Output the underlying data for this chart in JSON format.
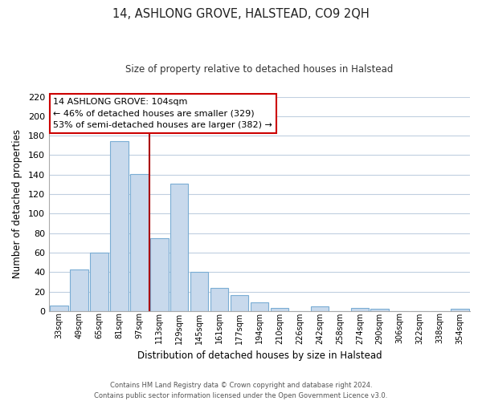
{
  "title": "14, ASHLONG GROVE, HALSTEAD, CO9 2QH",
  "subtitle": "Size of property relative to detached houses in Halstead",
  "xlabel": "Distribution of detached houses by size in Halstead",
  "ylabel": "Number of detached properties",
  "bar_labels": [
    "33sqm",
    "49sqm",
    "65sqm",
    "81sqm",
    "97sqm",
    "113sqm",
    "129sqm",
    "145sqm",
    "161sqm",
    "177sqm",
    "194sqm",
    "210sqm",
    "226sqm",
    "242sqm",
    "258sqm",
    "274sqm",
    "290sqm",
    "306sqm",
    "322sqm",
    "338sqm",
    "354sqm"
  ],
  "bar_values": [
    6,
    43,
    60,
    174,
    141,
    75,
    131,
    40,
    24,
    16,
    9,
    3,
    0,
    5,
    0,
    3,
    2,
    0,
    0,
    0,
    2
  ],
  "bar_color": "#c8d9ec",
  "bar_edge_color": "#7aadd4",
  "vline_x": 4.5,
  "vline_color": "#aa0000",
  "ylim": [
    0,
    220
  ],
  "yticks": [
    0,
    20,
    40,
    60,
    80,
    100,
    120,
    140,
    160,
    180,
    200,
    220
  ],
  "annotation_title": "14 ASHLONG GROVE: 104sqm",
  "annotation_line1": "← 46% of detached houses are smaller (329)",
  "annotation_line2": "53% of semi-detached houses are larger (382) →",
  "annotation_box_color": "#ffffff",
  "annotation_box_edge": "#cc0000",
  "footer1": "Contains HM Land Registry data © Crown copyright and database right 2024.",
  "footer2": "Contains public sector information licensed under the Open Government Licence v3.0.",
  "background_color": "#ffffff",
  "grid_color": "#c0cfe0"
}
